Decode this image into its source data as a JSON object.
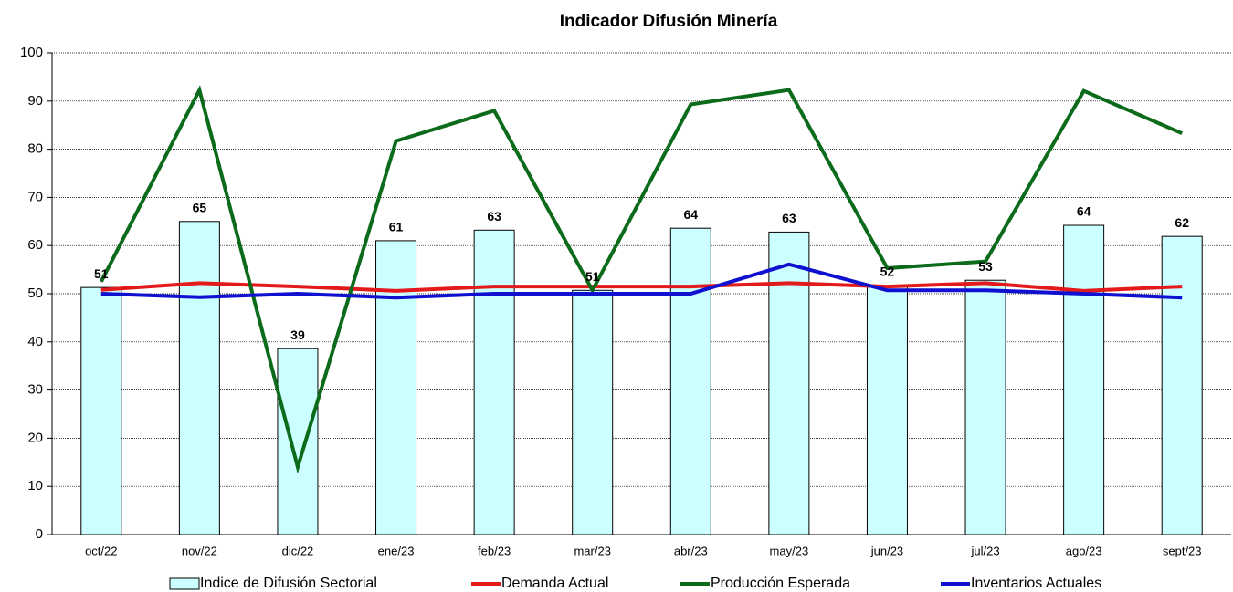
{
  "chart_data": {
    "type": "bar",
    "title": "Indicador Difusión Minería",
    "categories": [
      "oct/22",
      "nov/22",
      "dic/22",
      "ene/23",
      "feb/23",
      "mar/23",
      "abr/23",
      "may/23",
      "jun/23",
      "jul/23",
      "ago/23",
      "sept/23"
    ],
    "series": [
      {
        "name": "Indice de Difusión Sectorial",
        "type": "bar",
        "color": "#ccffff",
        "values": [
          51.3,
          65,
          38.6,
          61,
          63.2,
          50.7,
          63.6,
          62.8,
          51.7,
          52.8,
          64.2,
          61.9
        ],
        "value_labels": [
          "51",
          "65",
          "39",
          "61",
          "63",
          "51",
          "64",
          "63",
          "52",
          "53",
          "64",
          "62"
        ]
      },
      {
        "name": "Demanda Actual",
        "type": "line",
        "color": "#e31a1c",
        "values": [
          50.8,
          52.2,
          51.5,
          50.6,
          51.5,
          51.5,
          51.5,
          52.2,
          51.5,
          52.2,
          50.6,
          51.5
        ]
      },
      {
        "name": "Producción Esperada",
        "type": "line",
        "color": "#0b6b1a",
        "values": [
          52.5,
          92.3,
          14,
          81.7,
          88,
          50.7,
          89.3,
          92.3,
          55.3,
          56.7,
          92.1,
          83.3
        ]
      },
      {
        "name": "Inventarios Actuales",
        "type": "line",
        "color": "#1010d0",
        "values": [
          50,
          49.3,
          50,
          49.2,
          50,
          50,
          50,
          56.1,
          50.7,
          50.7,
          50,
          49.2
        ]
      }
    ],
    "ylim": [
      0,
      100
    ],
    "yticks": [
      0,
      10,
      20,
      30,
      40,
      50,
      60,
      70,
      80,
      90,
      100
    ],
    "grid": true,
    "legend": "bottom"
  }
}
